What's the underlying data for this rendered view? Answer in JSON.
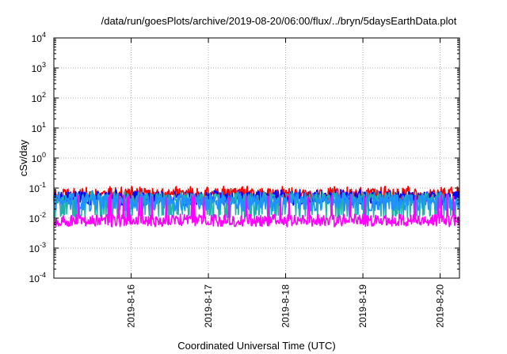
{
  "chart_data": {
    "type": "line",
    "title": "/data/run/goesPlots/archive/2019-08-20/06:00/flux/../bryn/5daysEarthData.plot",
    "xlabel": "Coordinated Universal Time (UTC)",
    "ylabel": "cSv/day",
    "y_scale": "log",
    "ylim": [
      0.0001,
      10000
    ],
    "xlim": [
      "2019-08-15T00:00",
      "2019-08-20T06:00"
    ],
    "grid": true,
    "legend": "none",
    "y_ticks": [
      {
        "base": "10",
        "exp": "-4",
        "value": 0.0001
      },
      {
        "base": "10",
        "exp": "-3",
        "value": 0.001
      },
      {
        "base": "10",
        "exp": "-2",
        "value": 0.01
      },
      {
        "base": "10",
        "exp": "-1",
        "value": 0.1
      },
      {
        "base": "10",
        "exp": "0",
        "value": 1
      },
      {
        "base": "10",
        "exp": "1",
        "value": 10
      },
      {
        "base": "10",
        "exp": "2",
        "value": 100
      },
      {
        "base": "10",
        "exp": "3",
        "value": 1000
      },
      {
        "base": "10",
        "exp": "4",
        "value": 10000
      }
    ],
    "x_ticks": [
      {
        "label": "2019-8-16",
        "value": "2019-08-16T00:00"
      },
      {
        "label": "2019-8-17",
        "value": "2019-08-17T00:00"
      },
      {
        "label": "2019-8-18",
        "value": "2019-08-18T00:00"
      },
      {
        "label": "2019-8-19",
        "value": "2019-08-19T00:00"
      },
      {
        "label": "2019-8-20",
        "value": "2019-08-20T00:00"
      }
    ],
    "series": [
      {
        "color": "#ff0000",
        "level": 0.065,
        "low": 0.04,
        "high": 0.11,
        "seed": 11
      },
      {
        "color": "#0000ff",
        "level": 0.052,
        "low": 0.03,
        "high": 0.085,
        "seed": 23
      },
      {
        "color": "#20b2aa",
        "level": 0.045,
        "low": 0.012,
        "high": 0.075,
        "seed": 37
      },
      {
        "color": "#1e90ff",
        "level": 0.04,
        "low": 0.02,
        "high": 0.07,
        "seed": 41
      },
      {
        "color": "#ff00ff",
        "level": 0.009,
        "low": 0.006,
        "high": 0.06,
        "seed": 53
      }
    ]
  }
}
